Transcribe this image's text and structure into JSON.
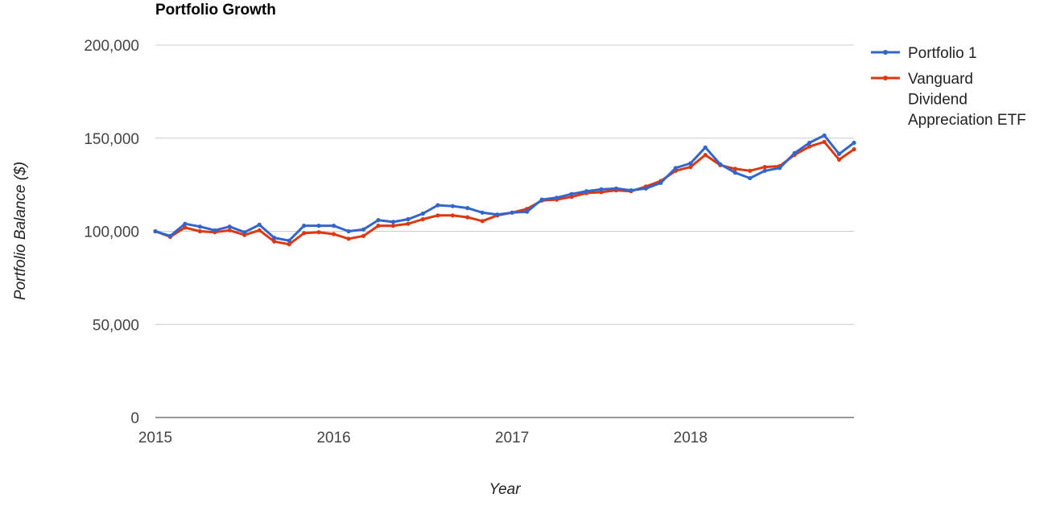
{
  "chart_data": {
    "type": "line",
    "title": "Portfolio Growth",
    "xlabel": "Year",
    "ylabel": "Portfolio Balance ($)",
    "xlim": [
      2015,
      2018.917
    ],
    "ylim": [
      0,
      200000
    ],
    "yticks": [
      {
        "value": 0,
        "label": "0"
      },
      {
        "value": 50000,
        "label": "50,000"
      },
      {
        "value": 100000,
        "label": "100,000"
      },
      {
        "value": 150000,
        "label": "150,000"
      },
      {
        "value": 200000,
        "label": "200,000"
      }
    ],
    "xticks": [
      {
        "value": 2015,
        "label": "2015"
      },
      {
        "value": 2016,
        "label": "2016"
      },
      {
        "value": 2017,
        "label": "2017"
      },
      {
        "value": 2018,
        "label": "2018"
      }
    ],
    "grid": true,
    "legend_position": "right",
    "series": [
      {
        "name": "Portfolio 1",
        "color": "#3366cc",
        "values": [
          100000,
          97500,
          104000,
          102500,
          100500,
          102500,
          99500,
          103500,
          96500,
          95000,
          103000,
          103000,
          103000,
          100000,
          101000,
          106000,
          105000,
          106500,
          109500,
          114000,
          113500,
          112500,
          110000,
          109000,
          110000,
          110500,
          117000,
          118000,
          120000,
          121500,
          122500,
          123000,
          122000,
          123000,
          126000,
          134000,
          136500,
          145000,
          136000,
          131500,
          128500,
          132500,
          134000,
          142000,
          147500,
          151500,
          141500,
          147500
        ]
      },
      {
        "name": "Vanguard Dividend Appreciation ETF",
        "legend_lines": [
          "Vanguard",
          "Dividend",
          "Appreciation ETF"
        ],
        "color": "#dc3912",
        "values": [
          100000,
          97000,
          102000,
          100000,
          99500,
          100500,
          98000,
          100500,
          94500,
          93000,
          99000,
          99500,
          98500,
          96000,
          97500,
          103000,
          103000,
          104000,
          106500,
          108500,
          108500,
          107500,
          105500,
          108500,
          110000,
          112000,
          116500,
          117000,
          118500,
          120500,
          121000,
          122000,
          121500,
          124000,
          127000,
          132500,
          134500,
          141000,
          135500,
          133500,
          132500,
          134500,
          135000,
          141000,
          145500,
          148000,
          138500,
          144000
        ]
      }
    ]
  }
}
